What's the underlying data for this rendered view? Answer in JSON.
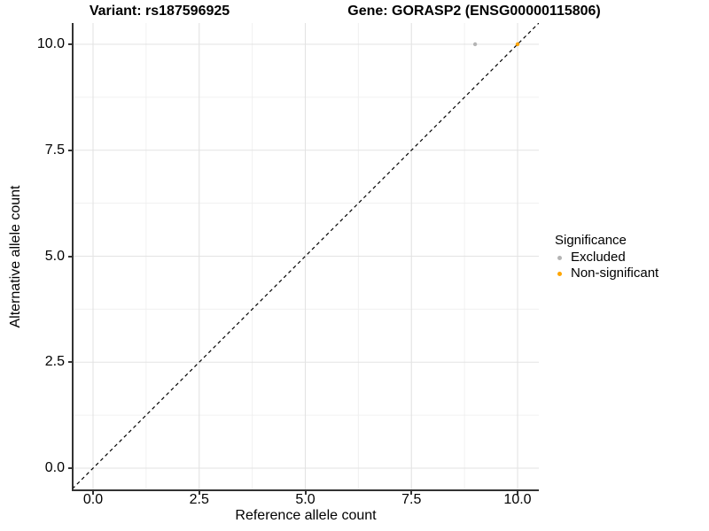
{
  "chart_data": {
    "type": "scatter",
    "titles": {
      "variant": "Variant: rs187596925",
      "gene": "Gene: GORASP2 (ENSG00000115806)"
    },
    "xlabel": "Reference allele count",
    "ylabel": "Alternative allele count",
    "xlim": [
      -0.5,
      10.5
    ],
    "ylim": [
      -0.5,
      10.5
    ],
    "xticks": [
      {
        "value": 0,
        "label": "0.0"
      },
      {
        "value": 2.5,
        "label": "2.5"
      },
      {
        "value": 5,
        "label": "5.0"
      },
      {
        "value": 7.5,
        "label": "7.5"
      },
      {
        "value": 10,
        "label": "10.0"
      }
    ],
    "yticks": [
      {
        "value": 0,
        "label": "0.0"
      },
      {
        "value": 2.5,
        "label": "2.5"
      },
      {
        "value": 5,
        "label": "5.0"
      },
      {
        "value": 7.5,
        "label": "7.5"
      },
      {
        "value": 10,
        "label": "10.0"
      }
    ],
    "x_minor_ticks": [
      1.25,
      3.75,
      6.25,
      8.75
    ],
    "y_minor_ticks": [
      1.25,
      3.75,
      6.25,
      8.75
    ],
    "grid": true,
    "identity_line": {
      "type": "dashed",
      "equation": "y = x",
      "color": "#000000"
    },
    "series": [
      {
        "name": "Excluded",
        "color": "#B4B4B4",
        "points": [
          {
            "x": 9,
            "y": 10
          }
        ]
      },
      {
        "name": "Non-significant",
        "color": "#FFA500",
        "points": [
          {
            "x": 10,
            "y": 10
          }
        ]
      }
    ],
    "legend": {
      "title": "Significance",
      "position": "right",
      "items": [
        {
          "label": "Excluded",
          "color": "#B4B4B4"
        },
        {
          "label": "Non-significant",
          "color": "#FFA500"
        }
      ]
    },
    "colors": {
      "grid_major": "#E3E3E3",
      "grid_minor": "#F0F0F0",
      "axis_line": "#333333",
      "text": "#000000",
      "background": "#FFFFFF"
    }
  }
}
